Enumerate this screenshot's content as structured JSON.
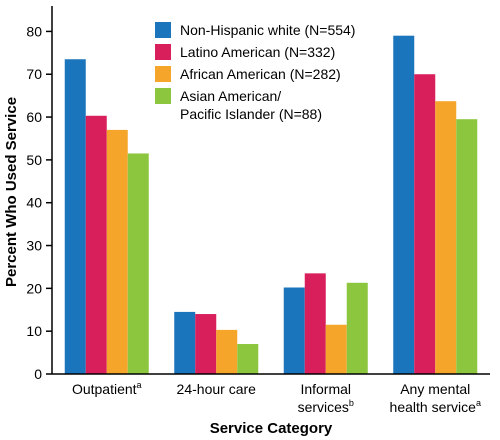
{
  "chart_data": {
    "type": "bar",
    "title": "",
    "xlabel": "Service Category",
    "ylabel": "Percent Who Used Service",
    "ylim": [
      0,
      85
    ],
    "yticks": [
      0,
      10,
      20,
      30,
      40,
      50,
      60,
      70,
      80
    ],
    "grid": false,
    "legend_position": "top-center",
    "categories": [
      {
        "lines": [
          "Outpatient"
        ],
        "sup": "a"
      },
      {
        "lines": [
          "24-hour care"
        ],
        "sup": ""
      },
      {
        "lines": [
          "Informal",
          "services"
        ],
        "sup": "b"
      },
      {
        "lines": [
          "Any mental",
          "health service"
        ],
        "sup": "a"
      }
    ],
    "series": [
      {
        "name": "Non-Hispanic white (N=554)",
        "legend_lines": [
          "Non-Hispanic white (N=554)"
        ],
        "color": "#1b75bc",
        "values": [
          73.5,
          14.5,
          20.2,
          79.0
        ]
      },
      {
        "name": "Latino American (N=332)",
        "legend_lines": [
          "Latino American (N=332)"
        ],
        "color": "#d81e5b",
        "values": [
          60.3,
          14.0,
          23.5,
          70.0
        ]
      },
      {
        "name": "African American (N=282)",
        "legend_lines": [
          "African American (N=282)"
        ],
        "color": "#f5a62a",
        "values": [
          57.0,
          10.3,
          11.5,
          63.7
        ]
      },
      {
        "name": "Asian American/ Pacific Islander (N=88)",
        "legend_lines": [
          "Asian American/",
          "Pacific Islander (N=88)"
        ],
        "color": "#8cc63e",
        "values": [
          51.5,
          7.0,
          21.3,
          59.5
        ]
      }
    ],
    "colors": {
      "background": "#ffffff",
      "plot_background": "#ffffff"
    }
  }
}
